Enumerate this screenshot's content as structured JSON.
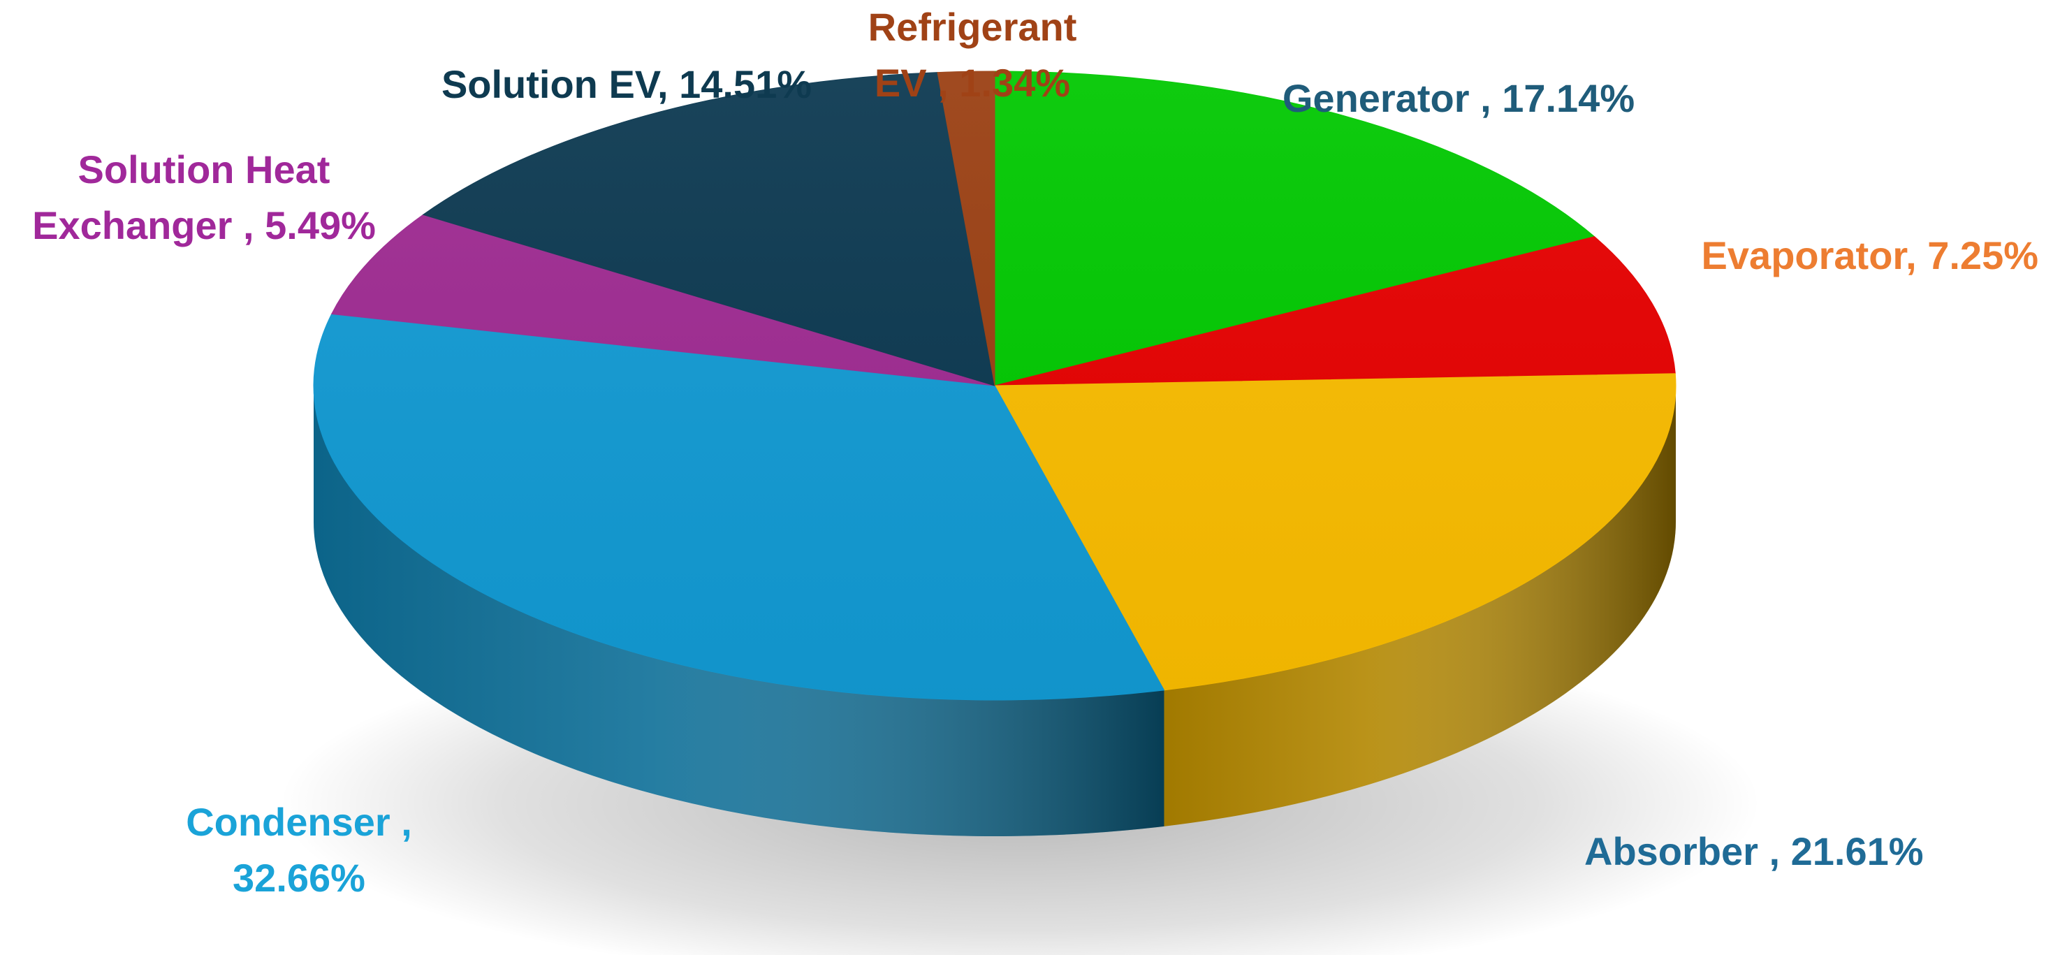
{
  "chart_data": {
    "type": "pie",
    "style": "3d",
    "slices": [
      {
        "name": "Generator",
        "value": 17.14,
        "label": "Generator , 17.14%",
        "color": "#00C800",
        "label_color": "#1F5C7A"
      },
      {
        "name": "Evaporator",
        "value": 7.25,
        "label": "Evaporator, 7.25%",
        "color": "#E60000",
        "label_color": "#ED7D31"
      },
      {
        "name": "Absorber",
        "value": 21.61,
        "label": "Absorber , 21.61%",
        "color": "#F9BC00",
        "label_color": "#1F6B96"
      },
      {
        "name": "Condenser",
        "value": 32.66,
        "label_lines": [
          "Condenser  ,",
          "32.66%"
        ],
        "color": "#129AD3",
        "label_color": "#1AA3D8"
      },
      {
        "name": "Solution Heat Exchanger",
        "value": 5.49,
        "label_lines": [
          "Solution Heat",
          "Exchanger , 5.49%"
        ],
        "color": "#9E2A91",
        "label_color": "#A0289A"
      },
      {
        "name": "Solution EV",
        "value": 14.51,
        "label": "Solution EV, 14.51%",
        "color": "#0B3850",
        "label_color": "#0E3A50"
      },
      {
        "name": "Refrigerant EV",
        "value": 1.34,
        "label_lines": [
          "Refrigerant",
          "EV , 1.34%"
        ],
        "color": "#9A3F12",
        "label_color": "#A04216"
      }
    ]
  }
}
